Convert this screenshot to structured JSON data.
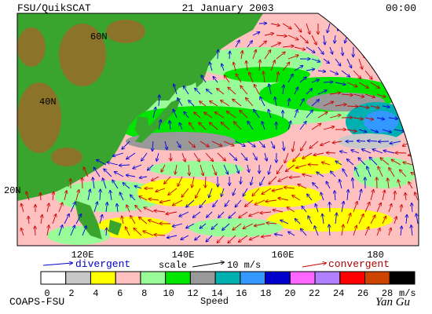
{
  "header": {
    "title": "FSU/QuikSCAT",
    "date": "21 January 2003",
    "time": "00:00"
  },
  "map": {
    "lat_labels": [
      "60N",
      "40N",
      "20N"
    ],
    "lon_labels": [
      "120E",
      "140E",
      "160E",
      "180"
    ]
  },
  "legend": {
    "divergent": "divergent",
    "scale": "scale",
    "scale_value": "10 m/s",
    "convergent": "convergent"
  },
  "colorbar": {
    "ticks": [
      0,
      2,
      4,
      6,
      8,
      10,
      12,
      14,
      16,
      18,
      20,
      22,
      24,
      26,
      28
    ],
    "unit": "m/s",
    "title": "Speed",
    "colors": [
      "#ffffff",
      "#c8c8c8",
      "#ffff00",
      "#ffc0c0",
      "#98fb98",
      "#00e600",
      "#999999",
      "#00b0b0",
      "#3399ff",
      "#0000cc",
      "#ff66ff",
      "#b080ff",
      "#ff0000",
      "#cc4400",
      "#000000"
    ]
  },
  "footer": {
    "credit": "COAPS-FSU",
    "signature": "Yan Gu"
  }
}
